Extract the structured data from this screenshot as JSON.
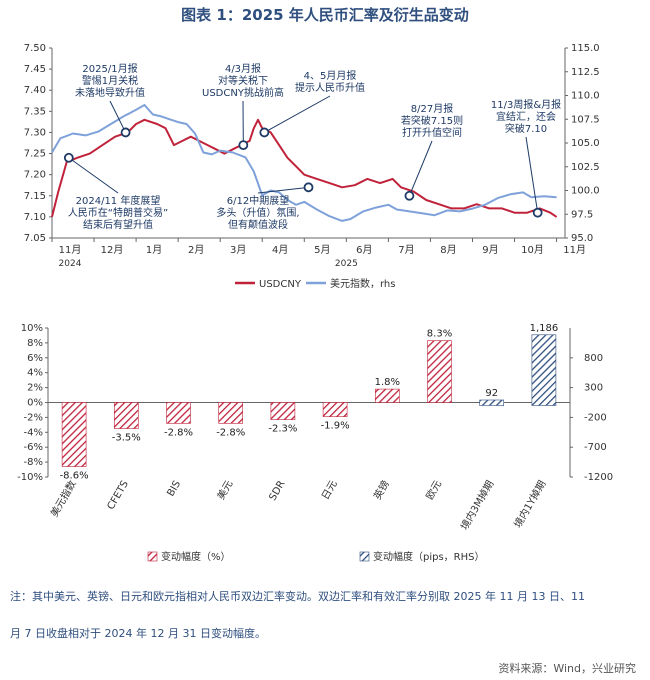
{
  "title": "图表 1：2025 年人民币汇率及衍生品变动",
  "chart_data": [
    {
      "type": "line",
      "y_left_range": [
        7.05,
        7.5
      ],
      "y_left_ticks": [
        "7.50",
        "7.45",
        "7.40",
        "7.35",
        "7.30",
        "7.25",
        "7.20",
        "7.15",
        "7.10",
        "7.05"
      ],
      "y_right_range": [
        95.0,
        115.0
      ],
      "y_right_ticks": [
        "115.0",
        "112.5",
        "110.0",
        "107.5",
        "105.0",
        "102.5",
        "100.0",
        "97.5",
        "95.0"
      ],
      "x_tick_labels": [
        "11月",
        "12月",
        "1月",
        "2月",
        "3月",
        "4月",
        "5月",
        "6月",
        "7月",
        "8月",
        "9月",
        "10月",
        "11月"
      ],
      "year_labels": [
        "2024",
        "2025"
      ],
      "series": [
        {
          "name": "USDCNY",
          "color": "#c0223a",
          "axis": "left",
          "points": [
            [
              0,
              7.1
            ],
            [
              0.15,
              7.16
            ],
            [
              0.35,
              7.23
            ],
            [
              0.6,
              7.24
            ],
            [
              0.9,
              7.25
            ],
            [
              1.2,
              7.27
            ],
            [
              1.5,
              7.29
            ],
            [
              1.8,
              7.3
            ],
            [
              2.0,
              7.32
            ],
            [
              2.2,
              7.33
            ],
            [
              2.5,
              7.32
            ],
            [
              2.7,
              7.31
            ],
            [
              2.9,
              7.27
            ],
            [
              3.1,
              7.28
            ],
            [
              3.3,
              7.29
            ],
            [
              3.5,
              7.28
            ],
            [
              3.7,
              7.27
            ],
            [
              3.9,
              7.26
            ],
            [
              4.1,
              7.25
            ],
            [
              4.3,
              7.26
            ],
            [
              4.5,
              7.27
            ],
            [
              4.7,
              7.28
            ],
            [
              4.8,
              7.31
            ],
            [
              4.9,
              7.33
            ],
            [
              5.0,
              7.31
            ],
            [
              5.2,
              7.3
            ],
            [
              5.4,
              7.27
            ],
            [
              5.6,
              7.24
            ],
            [
              5.8,
              7.22
            ],
            [
              6.0,
              7.2
            ],
            [
              6.3,
              7.19
            ],
            [
              6.6,
              7.18
            ],
            [
              6.9,
              7.17
            ],
            [
              7.2,
              7.175
            ],
            [
              7.5,
              7.19
            ],
            [
              7.8,
              7.18
            ],
            [
              8.1,
              7.19
            ],
            [
              8.3,
              7.17
            ],
            [
              8.6,
              7.16
            ],
            [
              8.9,
              7.14
            ],
            [
              9.2,
              7.13
            ],
            [
              9.5,
              7.12
            ],
            [
              9.8,
              7.12
            ],
            [
              10.1,
              7.13
            ],
            [
              10.4,
              7.12
            ],
            [
              10.7,
              7.12
            ],
            [
              11.0,
              7.11
            ],
            [
              11.3,
              7.11
            ],
            [
              11.6,
              7.12
            ],
            [
              11.85,
              7.11
            ],
            [
              12.0,
              7.1
            ]
          ]
        },
        {
          "name": "美元指数，rhs",
          "color": "#7ea1da",
          "axis": "right",
          "points": [
            [
              0,
              104.0
            ],
            [
              0.2,
              105.5
            ],
            [
              0.5,
              106.0
            ],
            [
              0.8,
              105.8
            ],
            [
              1.1,
              106.2
            ],
            [
              1.4,
              107.0
            ],
            [
              1.7,
              107.8
            ],
            [
              2.0,
              108.5
            ],
            [
              2.2,
              109.0
            ],
            [
              2.4,
              108.0
            ],
            [
              2.6,
              107.8
            ],
            [
              2.8,
              107.5
            ],
            [
              3.0,
              107.2
            ],
            [
              3.2,
              107.0
            ],
            [
              3.4,
              106.0
            ],
            [
              3.6,
              104.0
            ],
            [
              3.8,
              103.8
            ],
            [
              4.0,
              104.2
            ],
            [
              4.3,
              104.0
            ],
            [
              4.6,
              103.5
            ],
            [
              4.8,
              102.0
            ],
            [
              5.0,
              99.5
            ],
            [
              5.2,
              100.0
            ],
            [
              5.4,
              99.8
            ],
            [
              5.6,
              99.0
            ],
            [
              5.8,
              98.5
            ],
            [
              6.0,
              98.8
            ],
            [
              6.3,
              98.0
            ],
            [
              6.6,
              97.3
            ],
            [
              6.9,
              96.8
            ],
            [
              7.1,
              97.0
            ],
            [
              7.4,
              97.8
            ],
            [
              7.7,
              98.2
            ],
            [
              8.0,
              98.5
            ],
            [
              8.2,
              98.0
            ],
            [
              8.5,
              97.8
            ],
            [
              8.8,
              97.6
            ],
            [
              9.1,
              97.4
            ],
            [
              9.4,
              97.9
            ],
            [
              9.7,
              97.8
            ],
            [
              10.0,
              98.1
            ],
            [
              10.3,
              98.5
            ],
            [
              10.6,
              99.2
            ],
            [
              10.9,
              99.6
            ],
            [
              11.2,
              99.8
            ],
            [
              11.4,
              99.3
            ],
            [
              11.7,
              99.4
            ],
            [
              12.0,
              99.3
            ]
          ]
        }
      ],
      "annotations": [
        {
          "lines": [
            "2025/1月报",
            "警惕1月关税",
            "未落地导致升值"
          ],
          "point": [
            1.75,
            7.3
          ]
        },
        {
          "lines": [
            "4/3月报",
            "对等关税下",
            "USDCNY挑战前高"
          ],
          "point": [
            4.55,
            7.27
          ]
        },
        {
          "lines": [
            "4、5月月报",
            "提示人民币升值"
          ],
          "point": [
            5.05,
            7.3
          ]
        },
        {
          "lines": [
            "8/27月报",
            "若突破7.15则",
            "打开升值空间"
          ],
          "point": [
            8.5,
            7.15
          ]
        },
        {
          "lines": [
            "11/3周报&月报",
            "宜结汇，还会",
            "突破7.10"
          ],
          "point": [
            11.55,
            7.11
          ]
        },
        {
          "lines": [
            "2024/11 年度展望",
            "人民币在“特朗普交易”",
            "结束后有望升值"
          ],
          "point": [
            0.4,
            7.24
          ]
        },
        {
          "lines": [
            "6/12中期展望",
            "多头（升值）氛围,",
            "但有颠值波段"
          ],
          "point": [
            6.1,
            7.17
          ]
        }
      ]
    },
    {
      "type": "bar",
      "categories": [
        "美元指数",
        "CFETS",
        "BIS",
        "美元",
        "SDR",
        "日元",
        "英镑",
        "欧元",
        "境内3M掉期",
        "境内1Y掉期"
      ],
      "series": [
        {
          "name": "变动幅度（%）",
          "axis": "left",
          "values": [
            -8.6,
            -3.5,
            -2.8,
            -2.8,
            -2.3,
            -1.9,
            1.8,
            8.3,
            null,
            null
          ],
          "labels": [
            "-8.6%",
            "-3.5%",
            "-2.8%",
            "-2.8%",
            "-2.3%",
            "-1.9%",
            "1.8%",
            "8.3%",
            "",
            ""
          ]
        },
        {
          "name": "变动幅度（pips，RHS）",
          "axis": "right",
          "values": [
            null,
            null,
            null,
            null,
            null,
            null,
            null,
            null,
            92,
            1186
          ],
          "labels": [
            "",
            "",
            "",
            "",
            "",
            "",
            "",
            "",
            "92",
            "1,186"
          ]
        }
      ],
      "y_left_range": [
        -10,
        10
      ],
      "y_left_ticks": [
        "10%",
        "8%",
        "6%",
        "4%",
        "2%",
        "0%",
        "-2%",
        "-4%",
        "-6%",
        "-8%",
        "-10%"
      ],
      "y_right_range": [
        -1200,
        1300
      ],
      "y_right_ticks": [
        "800",
        "300",
        "-200",
        "-700",
        "-1200"
      ],
      "colors": {
        "pct": "#c0223a",
        "pips": "#2f4f7f"
      }
    }
  ],
  "legend": {
    "usdcny": "USDCNY",
    "dxy": "美元指数，rhs",
    "pct": "变动幅度（%）",
    "pips": "变动幅度（pips，RHS）"
  },
  "note_line1": "注：其中美元、英镑、日元和欧元指相对人民币双边汇率变动。双边汇率和有效汇率分别取 2025 年 11 月 13 日、11",
  "note_line2": "月 7 日收盘相对于 2024 年 12 月 31 日变动幅度。",
  "source": "资料来源：Wind，兴业研究"
}
